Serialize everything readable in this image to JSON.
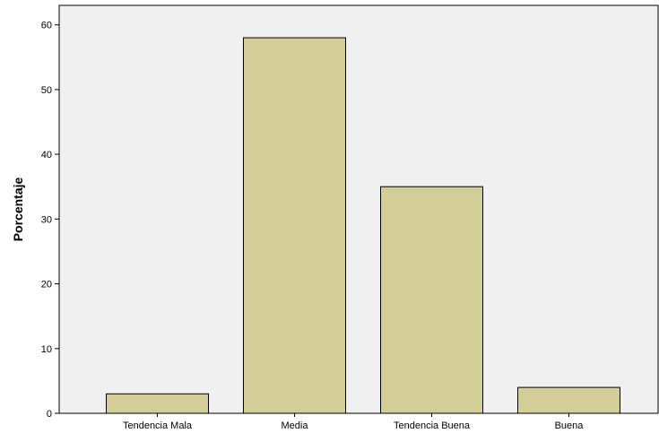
{
  "chart_data": {
    "type": "bar",
    "title": "",
    "xlabel": "",
    "ylabel": "Porcentaje",
    "categories": [
      "Tendencia Mala",
      "Media",
      "Tendencia Buena",
      "Buena"
    ],
    "values": [
      3,
      58,
      35,
      4
    ],
    "ylim": [
      0,
      63
    ],
    "yticks": [
      0,
      10,
      20,
      30,
      40,
      50,
      60
    ],
    "grid": false,
    "legend": "none",
    "colors": {
      "bar_fill": "#d3ce97",
      "bar_stroke": "#000000",
      "plot_background": "#f0f0f0",
      "axis": "#000000"
    }
  }
}
